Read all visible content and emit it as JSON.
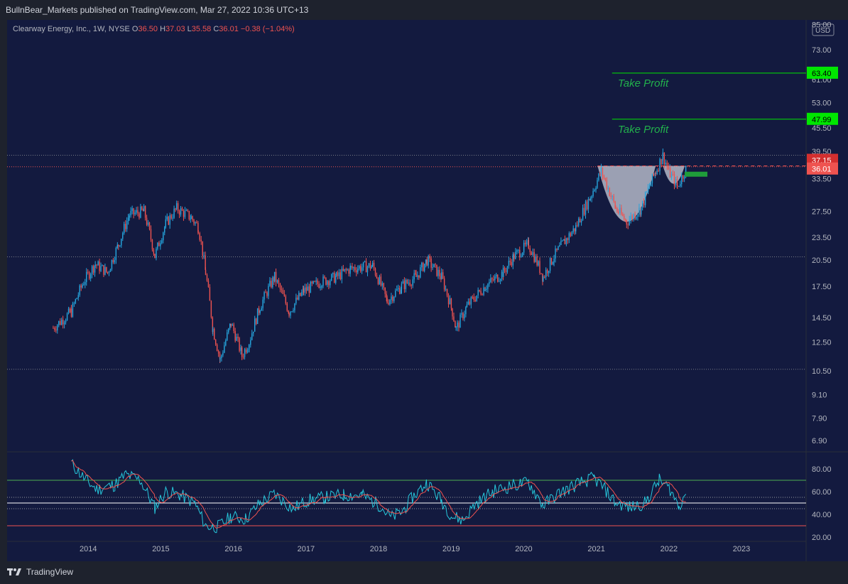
{
  "header": {
    "published_text": "BullnBear_Markets published on TradingView.com, Mar 27, 2022 10:36 UTC+13"
  },
  "legend": {
    "symbol": "Clearway Energy, Inc., 1W, NYSE",
    "open_label": "O",
    "open": "36.50",
    "high_label": "H",
    "high": "37.03",
    "low_label": "L",
    "low": "35.58",
    "close_label": "C",
    "close": "36.01",
    "change": "−0.38 (−1.04%)"
  },
  "currency": "USD",
  "footer": {
    "brand": "TradingView"
  },
  "colors": {
    "background": "#131a3f",
    "candle_up": "#26a5dd",
    "candle_down": "#ef5350",
    "rsi_line": "#26c6da",
    "rsi_ma": "#ef5350",
    "target_line": "#00e600",
    "cup_fill": "#b4b8c8"
  },
  "annotations": [
    {
      "text": "Take Profit",
      "target": 63.4
    },
    {
      "text": "Take Profit",
      "target": 47.99
    }
  ],
  "chart_data": [
    {
      "type": "candlestick",
      "title": "Clearway Energy, Inc., 1W, NYSE",
      "scale": "log",
      "ylim": [
        6.5,
        85
      ],
      "y_ticks": [
        "85.00",
        "73.00",
        "61.00",
        "53.00",
        "45.50",
        "39.50",
        "33.50",
        "27.50",
        "23.50",
        "20.50",
        "17.50",
        "14.50",
        "12.50",
        "10.50",
        "9.10",
        "7.90",
        "6.90"
      ],
      "x_ticks": [
        "2014",
        "2015",
        "2016",
        "2017",
        "2018",
        "2019",
        "2020",
        "2021",
        "2022",
        "2023"
      ],
      "price_labels": [
        {
          "value": "63.40",
          "kind": "target"
        },
        {
          "value": "47.99",
          "kind": "target"
        },
        {
          "value": "37.15",
          "kind": "resistance"
        },
        {
          "value": "36.01",
          "kind": "last"
        }
      ],
      "horizontal_levels": [
        38.6,
        20.9,
        10.6
      ],
      "series": [
        {
          "points": [
            [
              2013.5,
              13.6
            ],
            [
              2013.75,
              15.0
            ],
            [
              2013.92,
              18.0
            ],
            [
              2014.08,
              20.0
            ],
            [
              2014.25,
              19.0
            ],
            [
              2014.4,
              22.5
            ],
            [
              2014.55,
              27.0
            ],
            [
              2014.75,
              27.5
            ],
            [
              2014.9,
              21.0
            ],
            [
              2015.05,
              25.5
            ],
            [
              2015.2,
              28.0
            ],
            [
              2015.4,
              26.5
            ],
            [
              2015.5,
              25.0
            ],
            [
              2015.6,
              19.0
            ],
            [
              2015.7,
              13.5
            ],
            [
              2015.8,
              11.2
            ],
            [
              2015.95,
              14.0
            ],
            [
              2016.1,
              11.5
            ],
            [
              2016.2,
              12.5
            ],
            [
              2016.35,
              15.5
            ],
            [
              2016.55,
              18.5
            ],
            [
              2016.75,
              15.0
            ],
            [
              2016.95,
              17.0
            ],
            [
              2017.2,
              18.0
            ],
            [
              2017.4,
              18.5
            ],
            [
              2017.6,
              19.5
            ],
            [
              2017.9,
              19.8
            ],
            [
              2018.1,
              16.0
            ],
            [
              2018.3,
              17.5
            ],
            [
              2018.5,
              18.5
            ],
            [
              2018.65,
              20.5
            ],
            [
              2018.85,
              18.5
            ],
            [
              2019.0,
              15.0
            ],
            [
              2019.05,
              13.5
            ],
            [
              2019.2,
              15.5
            ],
            [
              2019.45,
              17.5
            ],
            [
              2019.7,
              19.0
            ],
            [
              2019.85,
              21.0
            ],
            [
              2020.05,
              22.5
            ],
            [
              2020.25,
              18.5
            ],
            [
              2020.4,
              21.0
            ],
            [
              2020.55,
              23.0
            ],
            [
              2020.7,
              25.0
            ],
            [
              2020.9,
              30.0
            ],
            [
              2021.05,
              35.0
            ],
            [
              2021.25,
              28.0
            ],
            [
              2021.4,
              25.8
            ],
            [
              2021.6,
              28.0
            ],
            [
              2021.8,
              35.0
            ],
            [
              2021.9,
              38.5
            ],
            [
              2022.0,
              34.5
            ],
            [
              2022.1,
              32.0
            ],
            [
              2022.23,
              36.0
            ]
          ]
        }
      ]
    },
    {
      "type": "line",
      "title": "RSI",
      "ylim": [
        20,
        90
      ],
      "y_ticks": [
        "80.00",
        "60.00",
        "40.00",
        "20.00"
      ],
      "bands": [
        70,
        50,
        30
      ],
      "series": [
        {
          "name": "",
          "points": [
            [
              2013.75,
              85
            ],
            [
              2013.95,
              70
            ],
            [
              2014.1,
              62
            ],
            [
              2014.35,
              66
            ],
            [
              2014.5,
              75
            ],
            [
              2014.7,
              70
            ],
            [
              2014.9,
              46
            ],
            [
              2015.05,
              60
            ],
            [
              2015.25,
              57
            ],
            [
              2015.45,
              50
            ],
            [
              2015.6,
              30
            ],
            [
              2015.75,
              28
            ],
            [
              2015.95,
              38
            ],
            [
              2016.15,
              36
            ],
            [
              2016.35,
              50
            ],
            [
              2016.55,
              58
            ],
            [
              2016.8,
              45
            ],
            [
              2017.0,
              52
            ],
            [
              2017.25,
              55
            ],
            [
              2017.5,
              57
            ],
            [
              2017.75,
              57
            ],
            [
              2018.0,
              48
            ],
            [
              2018.15,
              37
            ],
            [
              2018.3,
              42
            ],
            [
              2018.45,
              55
            ],
            [
              2018.65,
              68
            ],
            [
              2018.85,
              52
            ],
            [
              2019.0,
              38
            ],
            [
              2019.15,
              35
            ],
            [
              2019.3,
              48
            ],
            [
              2019.55,
              60
            ],
            [
              2019.8,
              65
            ],
            [
              2020.05,
              68
            ],
            [
              2020.25,
              48
            ],
            [
              2020.45,
              58
            ],
            [
              2020.7,
              66
            ],
            [
              2020.95,
              72
            ],
            [
              2021.1,
              62
            ],
            [
              2021.25,
              50
            ],
            [
              2021.45,
              46
            ],
            [
              2021.65,
              50
            ],
            [
              2021.85,
              70
            ],
            [
              2022.0,
              62
            ],
            [
              2022.12,
              47
            ],
            [
              2022.23,
              62
            ]
          ]
        }
      ]
    }
  ]
}
